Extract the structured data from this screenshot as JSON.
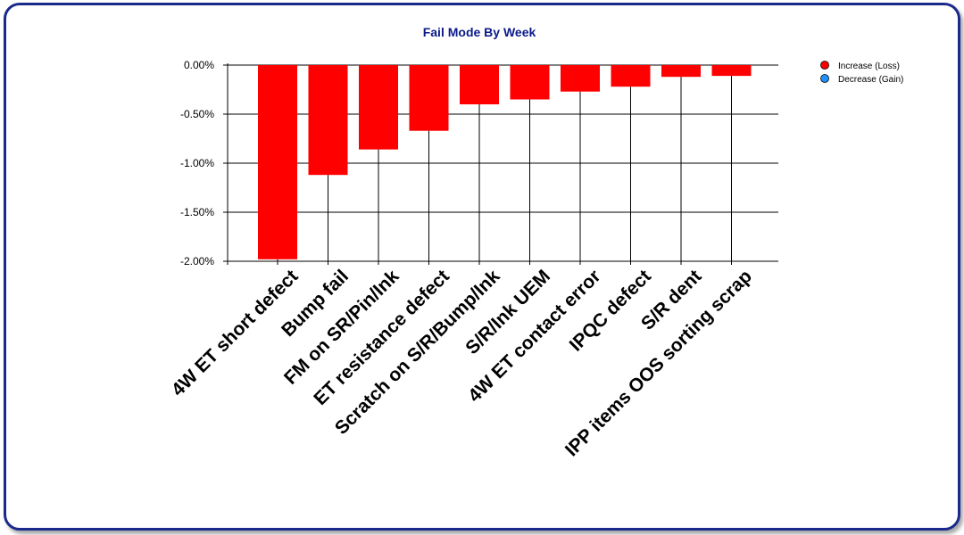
{
  "chart_data": {
    "type": "bar",
    "title": "Fail Mode By Week",
    "categories": [
      "4W ET short defect",
      "Bump fail",
      "FM on SR/Pin/Ink",
      "ET resistance defect",
      "Scratch on S/R/Bump/Ink",
      "S/R/Ink UEM",
      "4W ET contact error",
      "IPQC defect",
      "S/R dent",
      "IPP items OOS sorting scrap"
    ],
    "values": [
      -1.98,
      -1.12,
      -0.86,
      -0.67,
      -0.4,
      -0.35,
      -0.27,
      -0.22,
      -0.12,
      -0.11
    ],
    "ylim": [
      -2.0,
      0.0
    ],
    "yticks": [
      "0.00%",
      "-0.50%",
      "-1.00%",
      "-1.50%",
      "-2.00%"
    ],
    "ytick_values": [
      0.0,
      -0.5,
      -1.0,
      -1.5,
      -2.0
    ],
    "xlabel": "",
    "ylabel": "",
    "grid": "horizontal",
    "legend_position": "top-right",
    "legend": [
      {
        "label": "Increase (Loss)",
        "color": "#ff0000"
      },
      {
        "label": "Decrease (Gain)",
        "color": "#1e90ff"
      }
    ],
    "bar_color": "#ff0000"
  }
}
